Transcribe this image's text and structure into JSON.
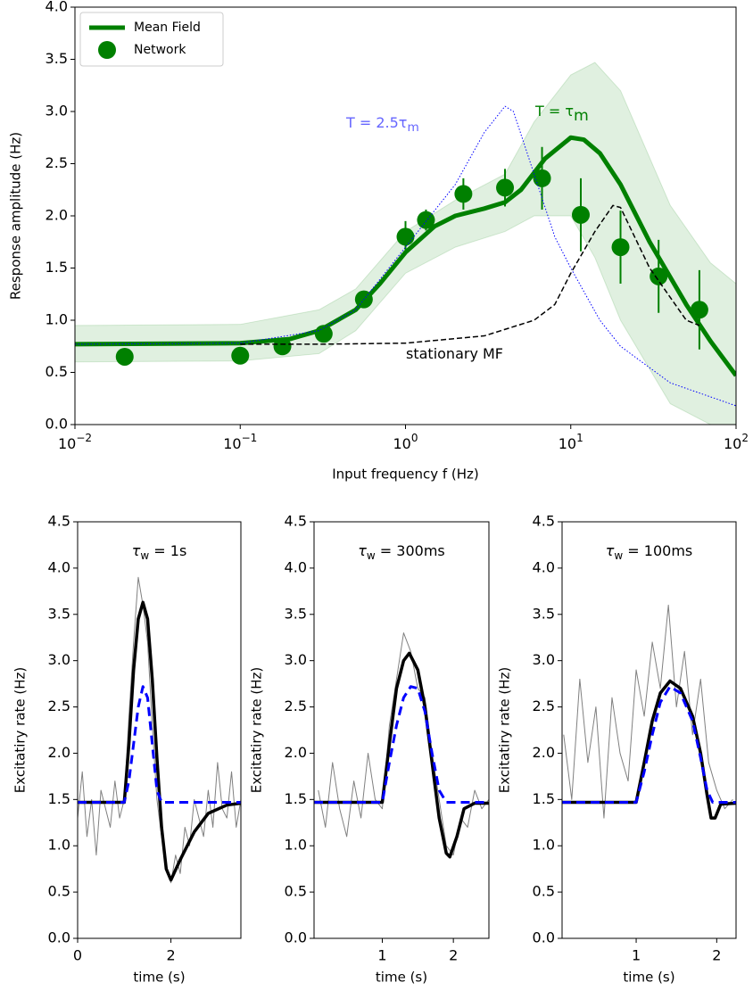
{
  "chart_data": [
    {
      "type": "line",
      "xscale": "log",
      "xlim": [
        0.01,
        100
      ],
      "ylim": [
        0,
        4
      ],
      "xticks": [
        {
          "value": 0.01,
          "label": "10",
          "exponent": "−2"
        },
        {
          "value": 0.1,
          "label": "10",
          "exponent": "−1"
        },
        {
          "value": 1,
          "label": "10",
          "exponent": "0"
        },
        {
          "value": 10,
          "label": "10",
          "exponent": "1"
        },
        {
          "value": 100,
          "label": "10",
          "exponent": "2"
        }
      ],
      "yticks": [
        {
          "value": 0,
          "label": "0.0"
        },
        0.5,
        {
          "value": 1,
          "label": "1.0"
        },
        1.5,
        {
          "value": 2,
          "label": "2.0"
        },
        2.5,
        {
          "value": 3,
          "label": "3.0"
        },
        3.5,
        {
          "value": 4,
          "label": "4.0"
        }
      ],
      "xlabel": "Input frequency f (Hz)",
      "ylabel": "Response amplitude (Hz)",
      "legend": "upper left",
      "band": {
        "color": "#008000",
        "x": [
          0.01,
          0.1,
          0.3,
          0.5,
          1,
          2,
          4,
          6,
          10,
          14,
          20,
          40,
          70,
          100
        ],
        "lower": [
          0.6,
          0.61,
          0.68,
          0.9,
          1.45,
          1.7,
          1.85,
          2.0,
          2.0,
          1.6,
          1.0,
          0.2,
          0,
          0
        ],
        "upper": [
          0.95,
          0.96,
          1.1,
          1.3,
          1.85,
          2.15,
          2.4,
          2.9,
          3.35,
          3.47,
          3.2,
          2.1,
          1.55,
          1.35
        ]
      },
      "series": [
        {
          "name": "Mean Field",
          "color": "#008000",
          "style": "solid",
          "x": [
            0.01,
            0.1,
            0.2,
            0.3,
            0.5,
            0.7,
            1,
            1.5,
            2,
            3,
            4,
            5,
            7,
            10,
            12,
            15,
            20,
            30,
            50,
            70,
            100
          ],
          "values": [
            0.77,
            0.78,
            0.82,
            0.9,
            1.1,
            1.35,
            1.65,
            1.9,
            2.0,
            2.07,
            2.13,
            2.25,
            2.55,
            2.75,
            2.73,
            2.6,
            2.3,
            1.75,
            1.15,
            0.8,
            0.47
          ]
        },
        {
          "name": "Network",
          "color": "#008000",
          "kind": "scatter",
          "x": [
            0.02,
            0.1,
            0.18,
            0.32,
            0.56,
            1.0,
            1.33,
            2.24,
            4.0,
            6.7,
            11.5,
            20,
            34,
            60
          ],
          "values": [
            0.65,
            0.66,
            0.75,
            0.87,
            1.2,
            1.8,
            1.96,
            2.21,
            2.27,
            2.36,
            2.01,
            1.7,
            1.42,
            1.1
          ],
          "errors": [
            0.05,
            0.05,
            0.05,
            0.05,
            0.05,
            0.15,
            0.1,
            0.15,
            0.18,
            0.3,
            0.35,
            0.35,
            0.35,
            0.38
          ]
        },
        {
          "color": "#0000ff",
          "style": "dotted",
          "x": [
            0.01,
            0.1,
            0.3,
            0.5,
            1,
            2,
            3,
            4,
            4.5,
            6,
            8,
            10,
            15,
            20,
            40,
            100
          ],
          "values": [
            0.77,
            0.78,
            0.9,
            1.1,
            1.7,
            2.3,
            2.8,
            3.05,
            3.0,
            2.4,
            1.8,
            1.5,
            1.0,
            0.75,
            0.4,
            0.18
          ]
        },
        {
          "color": "#000000",
          "style": "dashed",
          "x": [
            0.1,
            0.3,
            1,
            3,
            6,
            8,
            10,
            14,
            18,
            20,
            30,
            50,
            60
          ],
          "values": [
            0.77,
            0.77,
            0.78,
            0.85,
            1.0,
            1.15,
            1.45,
            1.85,
            2.1,
            2.08,
            1.5,
            1.0,
            0.95
          ]
        }
      ],
      "annotations": [
        {
          "text": "T = 2.5τ",
          "sub": "m",
          "color": "#6666ff"
        },
        {
          "text": "T = τ",
          "sub": "m",
          "color": "#008000"
        },
        {
          "text": "stationary MF",
          "color": "#000000"
        }
      ]
    },
    {
      "type": "line",
      "title": {
        "base": "τ",
        "sub": "w",
        "rest": " = 1s"
      },
      "xlim": [
        0,
        3.5
      ],
      "ylim": [
        0,
        4.5
      ],
      "xticks": [
        0,
        2
      ],
      "yticks": [
        {
          "value": 0,
          "label": "0.0"
        },
        0.5,
        {
          "value": 1,
          "label": "1.0"
        },
        1.5,
        {
          "value": 2,
          "label": "2.0"
        },
        2.5,
        {
          "value": 3,
          "label": "3.0"
        },
        3.5,
        {
          "value": 4,
          "label": "4.0"
        },
        4.5
      ],
      "xlabel": "time (s)",
      "ylabel": "Excitatiry rate (Hz)",
      "series": [
        {
          "color": "#808080",
          "style": "thin",
          "x": [
            0,
            0.1,
            0.2,
            0.3,
            0.4,
            0.5,
            0.6,
            0.7,
            0.8,
            0.9,
            1.0,
            1.1,
            1.2,
            1.3,
            1.4,
            1.5,
            1.6,
            1.7,
            1.8,
            1.9,
            2.0,
            2.1,
            2.2,
            2.3,
            2.4,
            2.5,
            2.6,
            2.7,
            2.8,
            2.9,
            3.0,
            3.1,
            3.2,
            3.3,
            3.4,
            3.5
          ],
          "values": [
            1.3,
            1.8,
            1.1,
            1.5,
            0.9,
            1.6,
            1.4,
            1.2,
            1.7,
            1.3,
            1.5,
            2.4,
            3.2,
            3.9,
            3.6,
            3.2,
            2.3,
            1.5,
            1.1,
            0.8,
            0.6,
            0.9,
            0.7,
            1.2,
            1.0,
            1.5,
            1.3,
            1.1,
            1.6,
            1.2,
            1.9,
            1.4,
            1.3,
            1.8,
            1.2,
            1.5
          ]
        },
        {
          "color": "#000000",
          "style": "solid",
          "x": [
            0,
            1.0,
            1.1,
            1.2,
            1.3,
            1.4,
            1.5,
            1.6,
            1.7,
            1.8,
            1.9,
            2.0,
            2.2,
            2.5,
            2.8,
            3.2,
            3.5
          ],
          "values": [
            1.47,
            1.47,
            2.1,
            2.9,
            3.45,
            3.63,
            3.45,
            2.8,
            1.95,
            1.2,
            0.75,
            0.63,
            0.85,
            1.15,
            1.35,
            1.44,
            1.46
          ]
        },
        {
          "color": "#0000ff",
          "style": "dashed",
          "x": [
            0,
            1.0,
            1.1,
            1.2,
            1.3,
            1.4,
            1.5,
            1.6,
            1.7,
            1.8,
            3.5
          ],
          "values": [
            1.47,
            1.47,
            1.7,
            2.1,
            2.5,
            2.72,
            2.6,
            2.1,
            1.6,
            1.47,
            1.47
          ]
        }
      ]
    },
    {
      "type": "line",
      "title": {
        "base": "τ",
        "sub": "w",
        "rest": " = 300ms"
      },
      "xlim": [
        0.04,
        2.5
      ],
      "ylim": [
        0,
        4.5
      ],
      "xticks": [
        1,
        2
      ],
      "yticks": [
        {
          "value": 0,
          "label": "0.0"
        },
        0.5,
        {
          "value": 1,
          "label": "1.0"
        },
        1.5,
        {
          "value": 2,
          "label": "2.0"
        },
        2.5,
        {
          "value": 3,
          "label": "3.0"
        },
        3.5,
        {
          "value": 4,
          "label": "4.0"
        },
        4.5
      ],
      "xlabel": "time (s)",
      "ylabel": "Excitatiry rate (Hz)",
      "series": [
        {
          "color": "#808080",
          "style": "thin",
          "x": [
            0.1,
            0.2,
            0.3,
            0.4,
            0.5,
            0.6,
            0.7,
            0.8,
            0.9,
            1.0,
            1.1,
            1.2,
            1.3,
            1.4,
            1.5,
            1.6,
            1.7,
            1.8,
            1.9,
            2.0,
            2.1,
            2.2,
            2.3,
            2.4,
            2.5
          ],
          "values": [
            1.6,
            1.2,
            1.9,
            1.4,
            1.1,
            1.7,
            1.3,
            2.0,
            1.5,
            1.4,
            2.3,
            2.8,
            3.3,
            3.1,
            2.7,
            2.6,
            2.0,
            1.5,
            1.0,
            0.9,
            1.3,
            1.2,
            1.6,
            1.4,
            1.5
          ]
        },
        {
          "color": "#000000",
          "style": "solid",
          "x": [
            0.04,
            1.0,
            1.1,
            1.2,
            1.3,
            1.38,
            1.5,
            1.6,
            1.7,
            1.8,
            1.9,
            1.95,
            2.05,
            2.15,
            2.3,
            2.5
          ],
          "values": [
            1.47,
            1.47,
            2.1,
            2.7,
            3.0,
            3.08,
            2.9,
            2.5,
            1.9,
            1.3,
            0.92,
            0.88,
            1.1,
            1.4,
            1.46,
            1.46
          ]
        },
        {
          "color": "#0000ff",
          "style": "dashed",
          "x": [
            0.04,
            1.0,
            1.1,
            1.2,
            1.3,
            1.4,
            1.5,
            1.6,
            1.7,
            1.8,
            1.9,
            2.5
          ],
          "values": [
            1.47,
            1.47,
            1.9,
            2.3,
            2.6,
            2.72,
            2.7,
            2.45,
            2.0,
            1.6,
            1.47,
            1.47
          ]
        }
      ]
    },
    {
      "type": "line",
      "title": {
        "base": "τ",
        "sub": "w",
        "rest": " = 100ms"
      },
      "xlim": [
        0.08,
        2.24
      ],
      "ylim": [
        0,
        4.5
      ],
      "xticks": [
        1,
        2
      ],
      "yticks": [
        {
          "value": 0,
          "label": "0.0"
        },
        0.5,
        {
          "value": 1,
          "label": "1.0"
        },
        1.5,
        {
          "value": 2,
          "label": "2.0"
        },
        2.5,
        {
          "value": 3,
          "label": "3.0"
        },
        3.5,
        {
          "value": 4,
          "label": "4.0"
        },
        4.5
      ],
      "xlabel": "time (s)",
      "ylabel": "Excitatiry rate (Hz)",
      "series": [
        {
          "color": "#808080",
          "style": "thin",
          "x": [
            0.1,
            0.2,
            0.3,
            0.4,
            0.5,
            0.6,
            0.7,
            0.8,
            0.9,
            1.0,
            1.1,
            1.2,
            1.3,
            1.4,
            1.5,
            1.6,
            1.7,
            1.8,
            1.9,
            2.0,
            2.1,
            2.2
          ],
          "values": [
            2.2,
            1.5,
            2.8,
            1.9,
            2.5,
            1.3,
            2.6,
            2.0,
            1.7,
            2.9,
            2.4,
            3.2,
            2.7,
            3.6,
            2.5,
            3.1,
            2.2,
            2.8,
            1.9,
            1.6,
            1.4,
            1.5
          ]
        },
        {
          "color": "#000000",
          "style": "solid",
          "x": [
            0.08,
            1.0,
            1.1,
            1.2,
            1.3,
            1.42,
            1.55,
            1.7,
            1.8,
            1.88,
            1.93,
            1.98,
            2.05,
            2.24
          ],
          "values": [
            1.47,
            1.47,
            1.9,
            2.35,
            2.65,
            2.78,
            2.7,
            2.4,
            2.0,
            1.55,
            1.3,
            1.3,
            1.45,
            1.46
          ]
        },
        {
          "color": "#0000ff",
          "style": "dashed",
          "x": [
            0.08,
            1.0,
            1.1,
            1.2,
            1.3,
            1.42,
            1.55,
            1.7,
            1.8,
            1.88,
            1.95,
            2.24
          ],
          "values": [
            1.47,
            1.47,
            1.8,
            2.2,
            2.55,
            2.72,
            2.65,
            2.35,
            1.95,
            1.6,
            1.47,
            1.47
          ]
        }
      ]
    }
  ]
}
